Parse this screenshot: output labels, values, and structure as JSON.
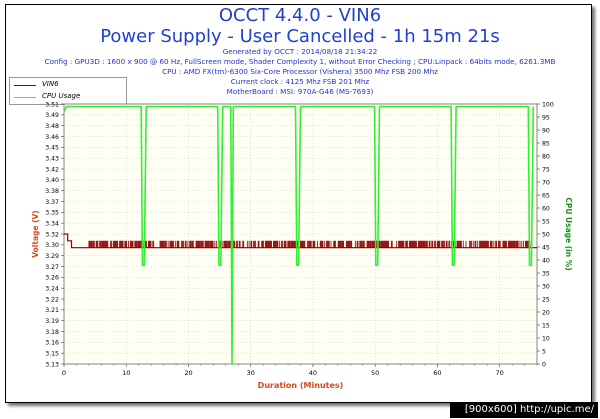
{
  "header": {
    "title": "OCCT 4.4.0 - VIN6",
    "subtitle": "Power Supply - User Cancelled - 1h 15m 21s",
    "info_lines": [
      "Generated by OCCT : 2014/08/18 21:34:22",
      "Config : GPU3D : 1600 x 900 @ 60 Hz, FullScreen mode, Shader Complexity 1, without Error Checking ; CPU:Linpack : 64bits mode, 6261.3MB",
      "CPU : AMD FX(tm)-6300 Six-Core Processor (Vishera) 3500 Mhz FSB 200 Mhz",
      "Current clock : 4125 Mhz FSB 201 Mhz",
      "MotherBoard : MSI: 970A-G46 (MS-7693)"
    ]
  },
  "watermark": "[900x600] http://upic.me/",
  "colors": {
    "voltage": "#8b0000",
    "cpu": "#33ee33",
    "plot_bg": "#fffff4",
    "grid": "#c9c9c9",
    "title": "#1f3fd6",
    "axis_label": "#d24a1e",
    "cpu_axis_label": "#1c8c1c"
  },
  "chart_data": {
    "type": "line",
    "xlabel": "Duration (Minutes)",
    "ylabel_left": "Voltage (V)",
    "ylabel_right": "CPU Usage (in %)",
    "xlim": [
      0,
      76
    ],
    "ylim_left": [
      3.13,
      3.51
    ],
    "ylim_right": [
      0,
      100
    ],
    "x_ticks": [
      0,
      10,
      20,
      30,
      40,
      50,
      60,
      70
    ],
    "y_ticks_left": [
      "3.13",
      "3.15",
      "3.16",
      "3.18",
      "3.19",
      "3.21",
      "3.22",
      "3.24",
      "3.26",
      "3.27",
      "3.29",
      "3.30",
      "3.32",
      "3.34",
      "3.35",
      "3.37",
      "3.38",
      "3.40",
      "3.42",
      "3.43",
      "3.45",
      "3.46",
      "3.48",
      "3.49",
      "3.51"
    ],
    "y_ticks_right": [
      0,
      5,
      10,
      15,
      20,
      25,
      30,
      35,
      40,
      45,
      50,
      55,
      60,
      65,
      70,
      75,
      80,
      85,
      90,
      95,
      100
    ],
    "grid": true,
    "legend_position": "top-left",
    "series": [
      {
        "name": "VIN6",
        "x": [
          0,
          0.6,
          0.6,
          1.2,
          1.2,
          76
        ],
        "y": [
          3.32,
          3.32,
          3.31,
          3.31,
          3.3,
          3.3
        ],
        "spike_band": [
          3.3,
          3.31
        ],
        "spike_ranges": [
          [
            4,
            75
          ]
        ]
      },
      {
        "name": "CPU Usage",
        "x": [
          0,
          0.4,
          12.4,
          12.6,
          12.9,
          13.2,
          24.7,
          24.9,
          25.2,
          25.5,
          26.8,
          27.0,
          27.2,
          37.2,
          37.4,
          37.7,
          38.0,
          49.9,
          50.1,
          50.4,
          50.7,
          62.2,
          62.4,
          62.7,
          63.0,
          74.6,
          74.8,
          75.1,
          75.4
        ],
        "y": [
          97,
          99,
          99,
          38,
          38,
          99,
          99,
          38,
          38,
          99,
          99,
          0,
          99,
          99,
          38,
          38,
          99,
          99,
          38,
          38,
          99,
          99,
          38,
          38,
          99,
          99,
          38,
          38,
          99
        ]
      }
    ]
  }
}
